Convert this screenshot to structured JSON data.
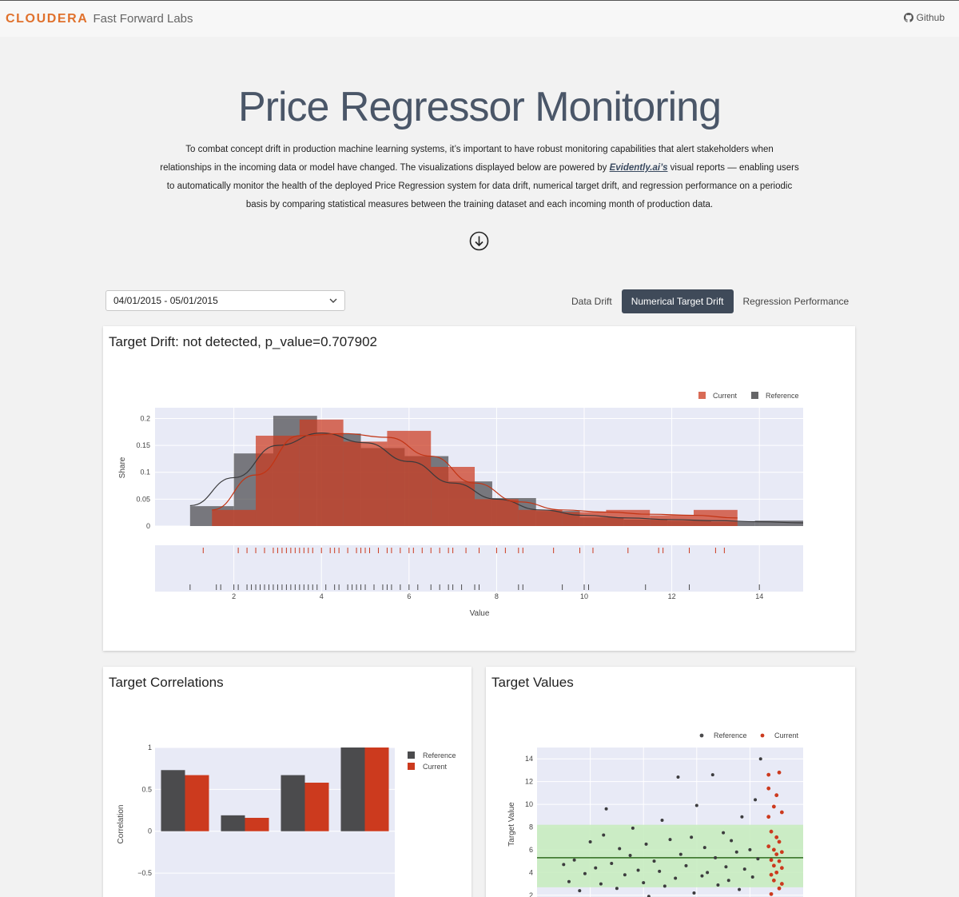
{
  "header": {
    "brand_main": "CLOUDERA",
    "brand_sub": "Fast Forward Labs",
    "github_label": "Github"
  },
  "hero": {
    "title": "Price Regressor Monitoring",
    "desc_part1": "To combat concept drift in production machine learning systems, it’s important to have robust monitoring capabilities that alert stakeholders when relationships in the incoming data or model have changed. The visualizations displayed below are powered by ",
    "desc_link": "Evidently.ai’s",
    "desc_part2": " visual reports — enabling users to automatically monitor the health of the deployed Price Regression system for data drift, numerical target drift, and regression performance on a periodic basis by comparing statistical measures between the training dataset and each incoming month of production data."
  },
  "controls": {
    "date_range": "04/01/2015 - 05/01/2015",
    "tabs": [
      {
        "label": "Data Drift",
        "active": false
      },
      {
        "label": "Numerical Target Drift",
        "active": true
      },
      {
        "label": "Regression Performance",
        "active": false
      }
    ]
  },
  "colors": {
    "current": "#cc3a1e",
    "reference": "#4b4b4d",
    "plot_bg": "#e8eaf6",
    "band": "#c8ecc0",
    "mean_line": "#2e6b1e"
  },
  "cards": {
    "drift_title": "Target Drift: not detected, p_value=0.707902",
    "correlations_title": "Target Correlations",
    "values_title": "Target Values"
  },
  "chart_data": [
    {
      "type": "bar",
      "subtype": "histogram-with-density-and-rug",
      "xlabel": "Value",
      "ylabel": "Share",
      "xlim": [
        0.2,
        15
      ],
      "ylim": [
        0,
        0.22
      ],
      "xticks": [
        "2",
        "4",
        "6",
        "8",
        "10",
        "12",
        "14"
      ],
      "yticks": [
        "0",
        "0.05",
        "0.1",
        "0.15",
        "0.2"
      ],
      "legend": "top-right",
      "legend_entries": [
        "Current",
        "Reference"
      ],
      "series": [
        {
          "name": "Reference",
          "bins": [
            {
              "x0": 1.0,
              "x1": 2.0,
              "y": 0.037
            },
            {
              "x0": 2.0,
              "x1": 2.9,
              "y": 0.135
            },
            {
              "x0": 2.9,
              "x1": 3.9,
              "y": 0.205
            },
            {
              "x0": 3.9,
              "x1": 4.9,
              "y": 0.172
            },
            {
              "x0": 4.9,
              "x1": 5.9,
              "y": 0.145
            },
            {
              "x0": 5.9,
              "x1": 6.9,
              "y": 0.13
            },
            {
              "x0": 6.9,
              "x1": 7.9,
              "y": 0.083
            },
            {
              "x0": 7.9,
              "x1": 8.9,
              "y": 0.052
            },
            {
              "x0": 8.9,
              "x1": 9.9,
              "y": 0.028
            },
            {
              "x0": 9.9,
              "x1": 10.9,
              "y": 0.016
            },
            {
              "x0": 10.9,
              "x1": 11.9,
              "y": 0.012
            },
            {
              "x0": 11.9,
              "x1": 12.9,
              "y": 0.01
            },
            {
              "x0": 12.9,
              "x1": 13.9,
              "y": 0.008
            },
            {
              "x0": 13.9,
              "x1": 15.0,
              "y": 0.01
            }
          ],
          "kde": [
            [
              1.0,
              0.038
            ],
            [
              2.0,
              0.09
            ],
            [
              3.0,
              0.15
            ],
            [
              4.0,
              0.173
            ],
            [
              5.0,
              0.155
            ],
            [
              6.0,
              0.12
            ],
            [
              7.0,
              0.08
            ],
            [
              8.0,
              0.05
            ],
            [
              9.0,
              0.03
            ],
            [
              10.0,
              0.02
            ],
            [
              11.0,
              0.015
            ],
            [
              12.0,
              0.012
            ],
            [
              13.0,
              0.01
            ],
            [
              14.0,
              0.008
            ],
            [
              15.0,
              0.006
            ]
          ],
          "rug": [
            1.0,
            1.6,
            1.7,
            2.0,
            2.1,
            2.3,
            2.4,
            2.5,
            2.6,
            2.7,
            2.8,
            2.9,
            3.0,
            3.1,
            3.2,
            3.3,
            3.4,
            3.5,
            3.6,
            3.7,
            3.8,
            3.9,
            4.1,
            4.3,
            4.4,
            4.6,
            4.7,
            4.8,
            4.9,
            5.0,
            5.2,
            5.4,
            5.5,
            5.6,
            5.8,
            6.0,
            6.2,
            6.5,
            6.7,
            6.9,
            7.0,
            7.2,
            7.5,
            7.6,
            8.5,
            8.6,
            9.5,
            10.0,
            10.1,
            11.4,
            12.4,
            14.0
          ]
        },
        {
          "name": "Current",
          "bins": [
            {
              "x0": 1.5,
              "x1": 2.5,
              "y": 0.03
            },
            {
              "x0": 2.5,
              "x1": 3.5,
              "y": 0.168
            },
            {
              "x0": 3.5,
              "x1": 4.5,
              "y": 0.198
            },
            {
              "x0": 4.5,
              "x1": 5.5,
              "y": 0.157
            },
            {
              "x0": 5.5,
              "x1": 6.5,
              "y": 0.177
            },
            {
              "x0": 6.5,
              "x1": 7.5,
              "y": 0.11
            },
            {
              "x0": 7.5,
              "x1": 8.5,
              "y": 0.05
            },
            {
              "x0": 8.5,
              "x1": 9.5,
              "y": 0.03
            },
            {
              "x0": 9.5,
              "x1": 10.5,
              "y": 0.026
            },
            {
              "x0": 10.5,
              "x1": 11.5,
              "y": 0.03
            },
            {
              "x0": 11.5,
              "x1": 12.5,
              "y": 0.02
            },
            {
              "x0": 12.5,
              "x1": 13.5,
              "y": 0.03
            }
          ],
          "kde": [
            [
              1.5,
              0.03
            ],
            [
              2.5,
              0.095
            ],
            [
              3.5,
              0.168
            ],
            [
              4.5,
              0.172
            ],
            [
              5.5,
              0.165
            ],
            [
              6.5,
              0.13
            ],
            [
              7.5,
              0.08
            ],
            [
              8.5,
              0.045
            ],
            [
              9.5,
              0.03
            ],
            [
              10.5,
              0.026
            ],
            [
              11.5,
              0.022
            ],
            [
              12.5,
              0.02
            ],
            [
              13.5,
              0.015
            ]
          ],
          "rug": [
            1.3,
            2.1,
            2.3,
            2.5,
            2.7,
            2.9,
            3.0,
            3.1,
            3.2,
            3.3,
            3.4,
            3.5,
            3.6,
            3.7,
            3.8,
            4.0,
            4.2,
            4.3,
            4.4,
            4.6,
            4.8,
            4.9,
            5.0,
            5.1,
            5.3,
            5.5,
            5.6,
            5.8,
            6.0,
            6.1,
            6.3,
            6.5,
            6.7,
            6.9,
            7.0,
            7.3,
            7.6,
            8.0,
            8.2,
            8.5,
            8.6,
            9.3,
            9.9,
            10.2,
            11.0,
            11.7,
            11.8,
            12.4,
            13.0,
            13.2
          ]
        }
      ]
    },
    {
      "type": "bar",
      "ylabel": "Correlation",
      "ylim": [
        -0.9,
        1.0
      ],
      "yticks": [
        "1",
        "0.5",
        "0",
        "−0.5"
      ],
      "legend": "right",
      "categories": [
        "",
        "",
        "",
        ""
      ],
      "series": [
        {
          "name": "Reference",
          "values": [
            0.73,
            0.19,
            0.67,
            1.0
          ]
        },
        {
          "name": "Current",
          "values": [
            0.67,
            0.16,
            0.58,
            1.0
          ]
        }
      ]
    },
    {
      "type": "scatter",
      "ylabel": "Target Value",
      "ylim": [
        1,
        15
      ],
      "yticks": [
        "2",
        "4",
        "6",
        "8",
        "10",
        "12",
        "14"
      ],
      "legend": "top-right",
      "band": [
        2.7,
        8.2
      ],
      "mean": 5.3,
      "series": [
        {
          "name": "Reference",
          "points": [
            [
              0.1,
              4.7
            ],
            [
              0.12,
              3.2
            ],
            [
              0.14,
              5.1
            ],
            [
              0.16,
              2.4
            ],
            [
              0.18,
              3.9
            ],
            [
              0.2,
              6.7
            ],
            [
              0.22,
              4.4
            ],
            [
              0.24,
              3.0
            ],
            [
              0.25,
              7.3
            ],
            [
              0.26,
              9.6
            ],
            [
              0.28,
              4.8
            ],
            [
              0.3,
              2.6
            ],
            [
              0.31,
              6.1
            ],
            [
              0.33,
              3.8
            ],
            [
              0.35,
              5.5
            ],
            [
              0.36,
              7.9
            ],
            [
              0.38,
              4.2
            ],
            [
              0.4,
              3.1
            ],
            [
              0.41,
              6.5
            ],
            [
              0.42,
              1.9
            ],
            [
              0.44,
              5.0
            ],
            [
              0.46,
              4.1
            ],
            [
              0.47,
              8.6
            ],
            [
              0.48,
              2.8
            ],
            [
              0.5,
              6.9
            ],
            [
              0.52,
              3.5
            ],
            [
              0.53,
              12.4
            ],
            [
              0.54,
              5.6
            ],
            [
              0.56,
              4.6
            ],
            [
              0.58,
              7.1
            ],
            [
              0.59,
              2.2
            ],
            [
              0.6,
              9.9
            ],
            [
              0.62,
              3.7
            ],
            [
              0.63,
              6.2
            ],
            [
              0.64,
              4.0
            ],
            [
              0.66,
              12.6
            ],
            [
              0.67,
              5.3
            ],
            [
              0.68,
              2.9
            ],
            [
              0.7,
              7.5
            ],
            [
              0.71,
              4.5
            ],
            [
              0.72,
              3.3
            ],
            [
              0.73,
              6.8
            ],
            [
              0.75,
              5.8
            ],
            [
              0.76,
              2.5
            ],
            [
              0.77,
              8.9
            ],
            [
              0.78,
              4.3
            ],
            [
              0.8,
              6.0
            ],
            [
              0.81,
              3.6
            ],
            [
              0.82,
              10.4
            ],
            [
              0.83,
              5.2
            ],
            [
              0.84,
              14.0
            ]
          ]
        },
        {
          "name": "Current",
          "points": [
            [
              0.87,
              12.6
            ],
            [
              0.87,
              11.4
            ],
            [
              0.87,
              8.9
            ],
            [
              0.87,
              6.3
            ],
            [
              0.88,
              5.1
            ],
            [
              0.88,
              3.8
            ],
            [
              0.88,
              2.1
            ],
            [
              0.88,
              7.6
            ],
            [
              0.89,
              4.6
            ],
            [
              0.89,
              9.8
            ],
            [
              0.89,
              6.0
            ],
            [
              0.89,
              3.3
            ],
            [
              0.9,
              5.6
            ],
            [
              0.9,
              4.0
            ],
            [
              0.9,
              10.8
            ],
            [
              0.9,
              7.1
            ],
            [
              0.91,
              2.6
            ],
            [
              0.91,
              5.0
            ],
            [
              0.91,
              6.7
            ],
            [
              0.91,
              12.8
            ],
            [
              0.92,
              4.4
            ],
            [
              0.92,
              3.0
            ],
            [
              0.92,
              9.3
            ],
            [
              0.92,
              5.8
            ]
          ]
        }
      ]
    }
  ]
}
